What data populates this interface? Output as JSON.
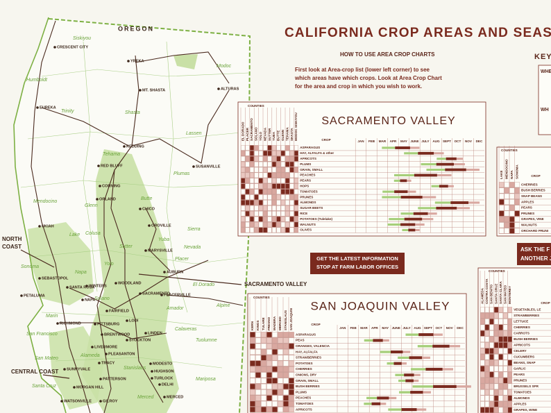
{
  "header": {
    "title": "CALIFORNIA CROP AREAS AND SEAS",
    "how_to_title": "HOW TO USE AREA CROP CHARTS",
    "how_to_lines": [
      "First look at Area-crop list (lower left corner) to see",
      "which areas have  which crops.  Look at Area Crop Chart",
      "for the area and crop in which you wish to work."
    ],
    "key_title": "KEY",
    "key_lines": [
      "WHE",
      "WH"
    ]
  },
  "map": {
    "state": "OREGON",
    "towns": [
      "CRESCENT CITY",
      "YREKA",
      "MT. SHASTA",
      "ALTURAS",
      "EUREKA",
      "REDDING",
      "SUSANVILLE",
      "RED BLUFF",
      "CORNING",
      "ORLAND",
      "CHICO",
      "OROVILLE",
      "UKIAH",
      "MARYSVILLE",
      "AUBURN",
      "WOODLAND",
      "SACRAMENTO",
      "PLACERVILLE",
      "SANTA ROSA",
      "WINTERS",
      "PETALUMA",
      "SEBASTOPOL",
      "NAPA",
      "FAIRFIELD",
      "LODI",
      "STOCKTON",
      "PITTSBURG",
      "RICHMOND",
      "BRENTWOOD",
      "LINDEN",
      "LIVERMORE",
      "PLEASANTON",
      "TRACY",
      "MODESTO",
      "HUGHSON",
      "TURLOCK",
      "PATTERSON",
      "SUNNYVALE",
      "MORGAN HILL",
      "DELHI",
      "MERCED",
      "GILROY",
      "WATSONVILLE"
    ],
    "counties": [
      "Siskiyou",
      "Modoc",
      "Humboldt",
      "Trinity",
      "Shasta",
      "Lassen",
      "Tehama",
      "Plumas",
      "Mendocino",
      "Glenn",
      "Butte",
      "Colusa",
      "Lake",
      "Sierra",
      "Yuba",
      "Sutter",
      "Nevada",
      "Yolo",
      "Placer",
      "Sonoma",
      "Napa",
      "El Dorado",
      "Solano",
      "Amador",
      "Alpine",
      "Marin",
      "San Francisco",
      "Calaveras",
      "Tuolumne",
      "Alameda",
      "San Mateo",
      "Stanislaus",
      "Mariposa",
      "Santa Cruz",
      "Merced"
    ],
    "callouts": [
      {
        "lines": [
          "NORTH",
          "COAST"
        ]
      },
      {
        "lines": [
          "SACRAMENTO VALLEY"
        ]
      },
      {
        "lines": [
          "CENTRAL COAST"
        ]
      }
    ]
  },
  "sacramento_chart": {
    "title": "SACRAMENTO VALLEY",
    "counties_label": "COUNTIES",
    "counties": [
      "EL DORADO",
      "PLACER",
      "SACRAMENTO",
      "SOLANO",
      "YOLO",
      "NEVADA",
      "SUTTER",
      "YUBA",
      "BUTTE",
      "GLENN",
      "TEHAMA",
      "SHASTA",
      "MODOC SISKIYOU"
    ],
    "crop_label": "CROP",
    "months": [
      "JAN",
      "FEB",
      "MAR",
      "APR",
      "MAY",
      "JUNE",
      "JULY",
      "AUG",
      "SEPT",
      "OCT",
      "NOV",
      "DEC"
    ],
    "crops": [
      "ASPARAGUS",
      "HAY, ALFALFA & other",
      "APRICOTS",
      "PLUMS",
      "GRAIN, SMALL",
      "PEACHES",
      "PEARS",
      "HOPS",
      "TOMATOES",
      "PRUNES",
      "ALMONDS",
      "SUGAR BEETS",
      "RICE",
      "POTATOES (Tulelake)",
      "WALNUTS",
      "OLIVES"
    ]
  },
  "banners": {
    "farm_labor": [
      "GET THE LATEST INFORMATION",
      "STOP AT FARM LABOR OFFICES"
    ],
    "ask": [
      "ASK THE F",
      "ANOTHER J"
    ]
  },
  "san_joaquin_chart": {
    "title": "SAN JOAQUIN VALLEY",
    "counties_label": "COUNTIES",
    "counties": [
      "KERN",
      "KINGS",
      "TULARE",
      "FRESNO",
      "MADERA",
      "MERCED",
      "STANISLAUS",
      "SAN JOAQUIN"
    ],
    "crop_label": "CROP",
    "months": [
      "JAN",
      "FEB",
      "MAR",
      "APR",
      "MAY",
      "JUNE",
      "JULY",
      "AUG",
      "SEPT",
      "OCT",
      "NOV",
      "DEC"
    ],
    "crops": [
      "ASPARAGUS",
      "PEAS",
      "ORANGES, VALENCIA",
      "HAY, ALFALFA",
      "STRAWBERRIES",
      "POTATOES",
      "CHERRIES",
      "ONIONS, DRY",
      "GRAIN, SMALL",
      "BUSH BERRIES",
      "PLUMS",
      "PEACHES",
      "TOMATOES",
      "APRICOTS"
    ]
  },
  "north_coast_chart": {
    "counties_label": "COUNTIES",
    "counties": [
      "LAKE",
      "MENDOCINO",
      "NAPA",
      "SONOMA"
    ],
    "crop_label": "CROP",
    "crops": [
      "CHERRIES",
      "BUSH BERRIES",
      "SNAP BEANS",
      "APPLES",
      "PEARS",
      "PRUNES",
      "GRAPES, VINE",
      "WALNUTS",
      "ORCHARD PRUNI"
    ]
  },
  "central_coast_chart": {
    "counties_label": "COUNTIES",
    "counties": [
      "ALAMEDA",
      "CONTRA COSTA",
      "SAN BENITO",
      "SANTA CRUZ",
      "SANTA CLARA",
      "SAN MATEO",
      "MONTEREY"
    ],
    "crop_label": "CROP",
    "crops": [
      "VEGETABLES, LE",
      "STRAWBERRIES",
      "LETTUCE",
      "CHERRIES",
      "CARROTS",
      "BUSH BERRIES",
      "APRICOTS",
      "CELERY",
      "CUCUMBERS",
      "BEANS, SNAP",
      "GARLIC",
      "PEARS",
      "PRUNES",
      "BRUSSELS SPR",
      "TOMATOES",
      "ALMONDS",
      "APPLES",
      "GRAPES, WINE"
    ]
  }
}
